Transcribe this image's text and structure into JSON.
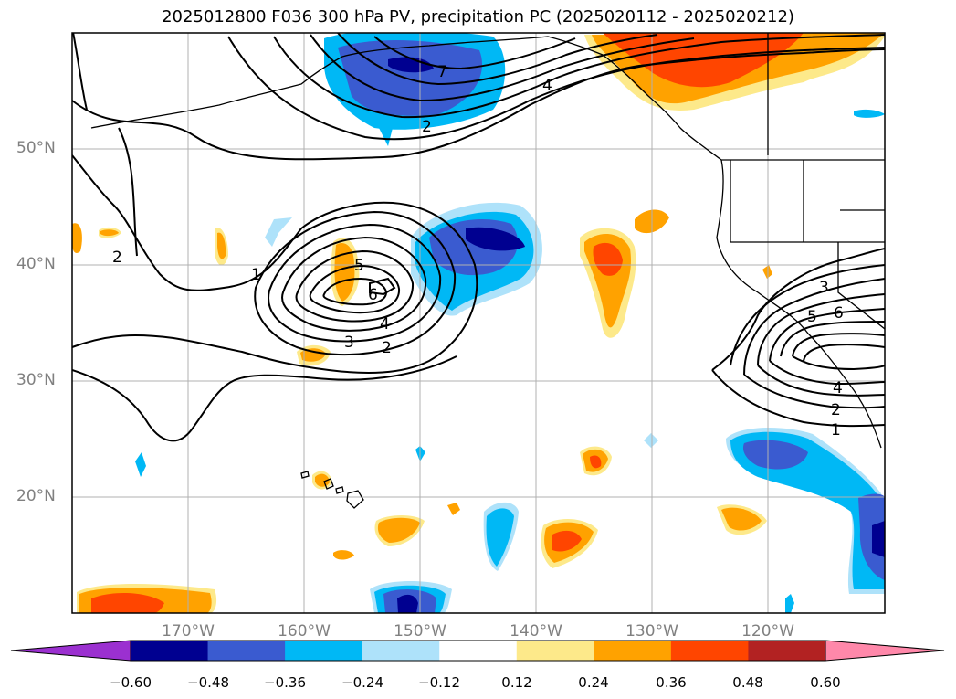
{
  "title": "2025012800 F036 300 hPa PV, precipitation PC (2025020112 - 2025020212)",
  "lat_labels": [
    "50°N",
    "40°N",
    "30°N",
    "20°N"
  ],
  "lon_labels": [
    "170°W",
    "160°W",
    "150°W",
    "140°W",
    "130°W",
    "120°W"
  ],
  "contour_labels": {
    "west": [
      "1",
      "2",
      "2",
      "3",
      "4",
      "5",
      "6"
    ],
    "north": [
      "7",
      "4",
      "2"
    ],
    "east": [
      "3",
      "5",
      "6",
      "4",
      "2",
      "1"
    ]
  },
  "colorbar": {
    "ticks": [
      "−0.60",
      "−0.48",
      "−0.36",
      "−0.24",
      "−0.12",
      "0.12",
      "0.24",
      "0.36",
      "0.48",
      "0.60"
    ],
    "colors": [
      "#9b30d0",
      "#000090",
      "#3a5bd0",
      "#00b8f5",
      "#aee2fa",
      "#ffffff",
      "#fde98a",
      "#ffa200",
      "#ff4500",
      "#b22222",
      "#ff88aa"
    ]
  }
}
